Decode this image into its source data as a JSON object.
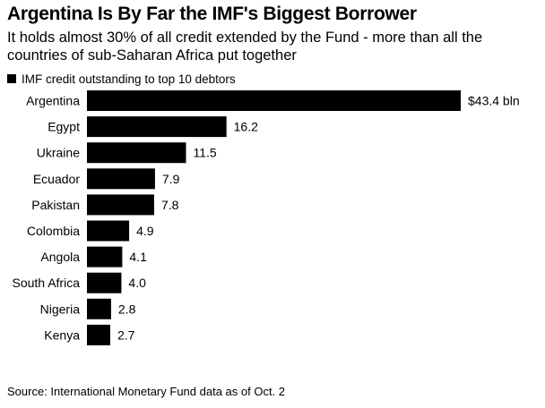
{
  "title": "Argentina Is By Far the IMF's Biggest Borrower",
  "subtitle": "It holds almost 30% of all credit extended by the Fund - more than all the countries of sub-Saharan Africa put together",
  "source": "Source: International Monetary Fund data as of Oct. 2",
  "chart_data": {
    "type": "bar",
    "orientation": "horizontal",
    "title": "Argentina Is By Far the IMF's Biggest Borrower",
    "subtitle": "It holds almost 30% of all credit extended by the Fund - more than all the countries of sub-Saharan Africa put together",
    "legend": [
      "IMF credit outstanding to top 10 debtors"
    ],
    "legend_position": "top-left",
    "categories": [
      "Argentina",
      "Egypt",
      "Ukraine",
      "Ecuador",
      "Pakistan",
      "Colombia",
      "Angola",
      "South Africa",
      "Nigeria",
      "Kenya"
    ],
    "series": [
      {
        "name": "IMF credit outstanding to top 10 debtors",
        "values": [
          43.4,
          16.2,
          11.5,
          7.9,
          7.8,
          4.9,
          4.1,
          4.0,
          2.8,
          2.7
        ],
        "color": "#000000"
      }
    ],
    "data_labels": [
      "$43.4 bln",
      "16.2",
      "11.5",
      "7.9",
      "7.8",
      "4.9",
      "4.1",
      "4.0",
      "2.8",
      "2.7"
    ],
    "unit": "$ bln",
    "grid": false,
    "xlim": [
      0,
      43.4
    ]
  }
}
